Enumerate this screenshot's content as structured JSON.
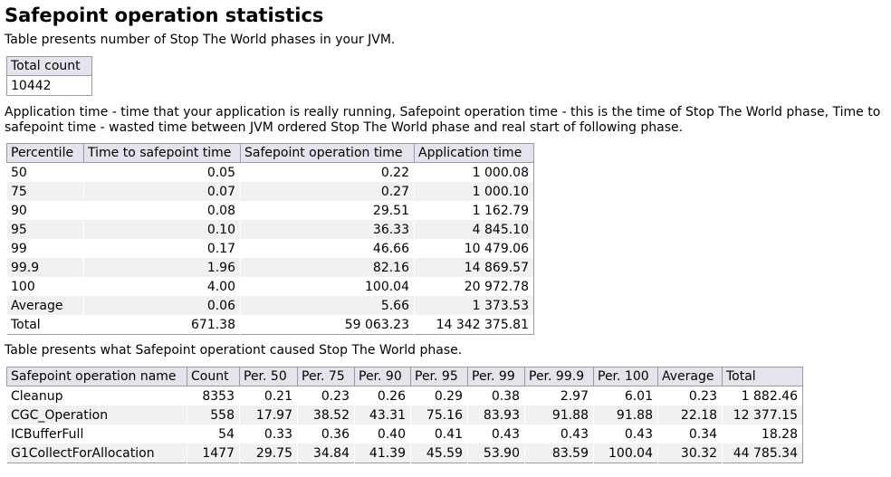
{
  "title": "Safepoint operation statistics",
  "intro": "Table presents number of Stop The World phases in your JVM.",
  "total_count": {
    "header": "Total count",
    "value": "10442"
  },
  "description": {
    "line1": "Application time - time that your application is really running, Safepoint operation time - this is the time of Stop The World phase, Time to",
    "line2": "safepoint time - wasted time between JVM ordered Stop The World phase and real start of following phase."
  },
  "percentile_table": {
    "columns": [
      "Percentile",
      "Time to safepoint time",
      "Safepoint operation time",
      "Application time"
    ],
    "rows": [
      [
        "50",
        "0.05",
        "0.22",
        "1 000.08"
      ],
      [
        "75",
        "0.07",
        "0.27",
        "1 000.10"
      ],
      [
        "90",
        "0.08",
        "29.51",
        "1 162.79"
      ],
      [
        "95",
        "0.10",
        "36.33",
        "4 845.10"
      ],
      [
        "99",
        "0.17",
        "46.66",
        "10 479.06"
      ],
      [
        "99.9",
        "1.96",
        "82.16",
        "14 869.57"
      ],
      [
        "100",
        "4.00",
        "100.04",
        "20 972.78"
      ],
      [
        "Average",
        "0.06",
        "5.66",
        "1 373.53"
      ],
      [
        "Total",
        "671.38",
        "59 063.23",
        "14 342 375.81"
      ]
    ]
  },
  "operations_caption": "Table presents what Safepoint operationt caused Stop The World phase.",
  "operations_table": {
    "columns": [
      "Safepoint operation name",
      "Count",
      "Per. 50",
      "Per. 75",
      "Per. 90",
      "Per. 95",
      "Per. 99",
      "Per. 99.9",
      "Per. 100",
      "Average",
      "Total"
    ],
    "rows": [
      [
        "Cleanup",
        "8353",
        "0.21",
        "0.23",
        "0.26",
        "0.29",
        "0.38",
        "2.97",
        "6.01",
        "0.23",
        "1 882.46"
      ],
      [
        "CGC_Operation",
        "558",
        "17.97",
        "38.52",
        "43.31",
        "75.16",
        "83.93",
        "91.88",
        "91.88",
        "22.18",
        "12 377.15"
      ],
      [
        "ICBufferFull",
        "54",
        "0.33",
        "0.36",
        "0.40",
        "0.41",
        "0.43",
        "0.43",
        "0.43",
        "0.34",
        "18.28"
      ],
      [
        "G1CollectForAllocation",
        "1477",
        "29.75",
        "34.84",
        "41.39",
        "45.59",
        "53.90",
        "83.59",
        "100.04",
        "30.32",
        "44 785.34"
      ]
    ]
  }
}
